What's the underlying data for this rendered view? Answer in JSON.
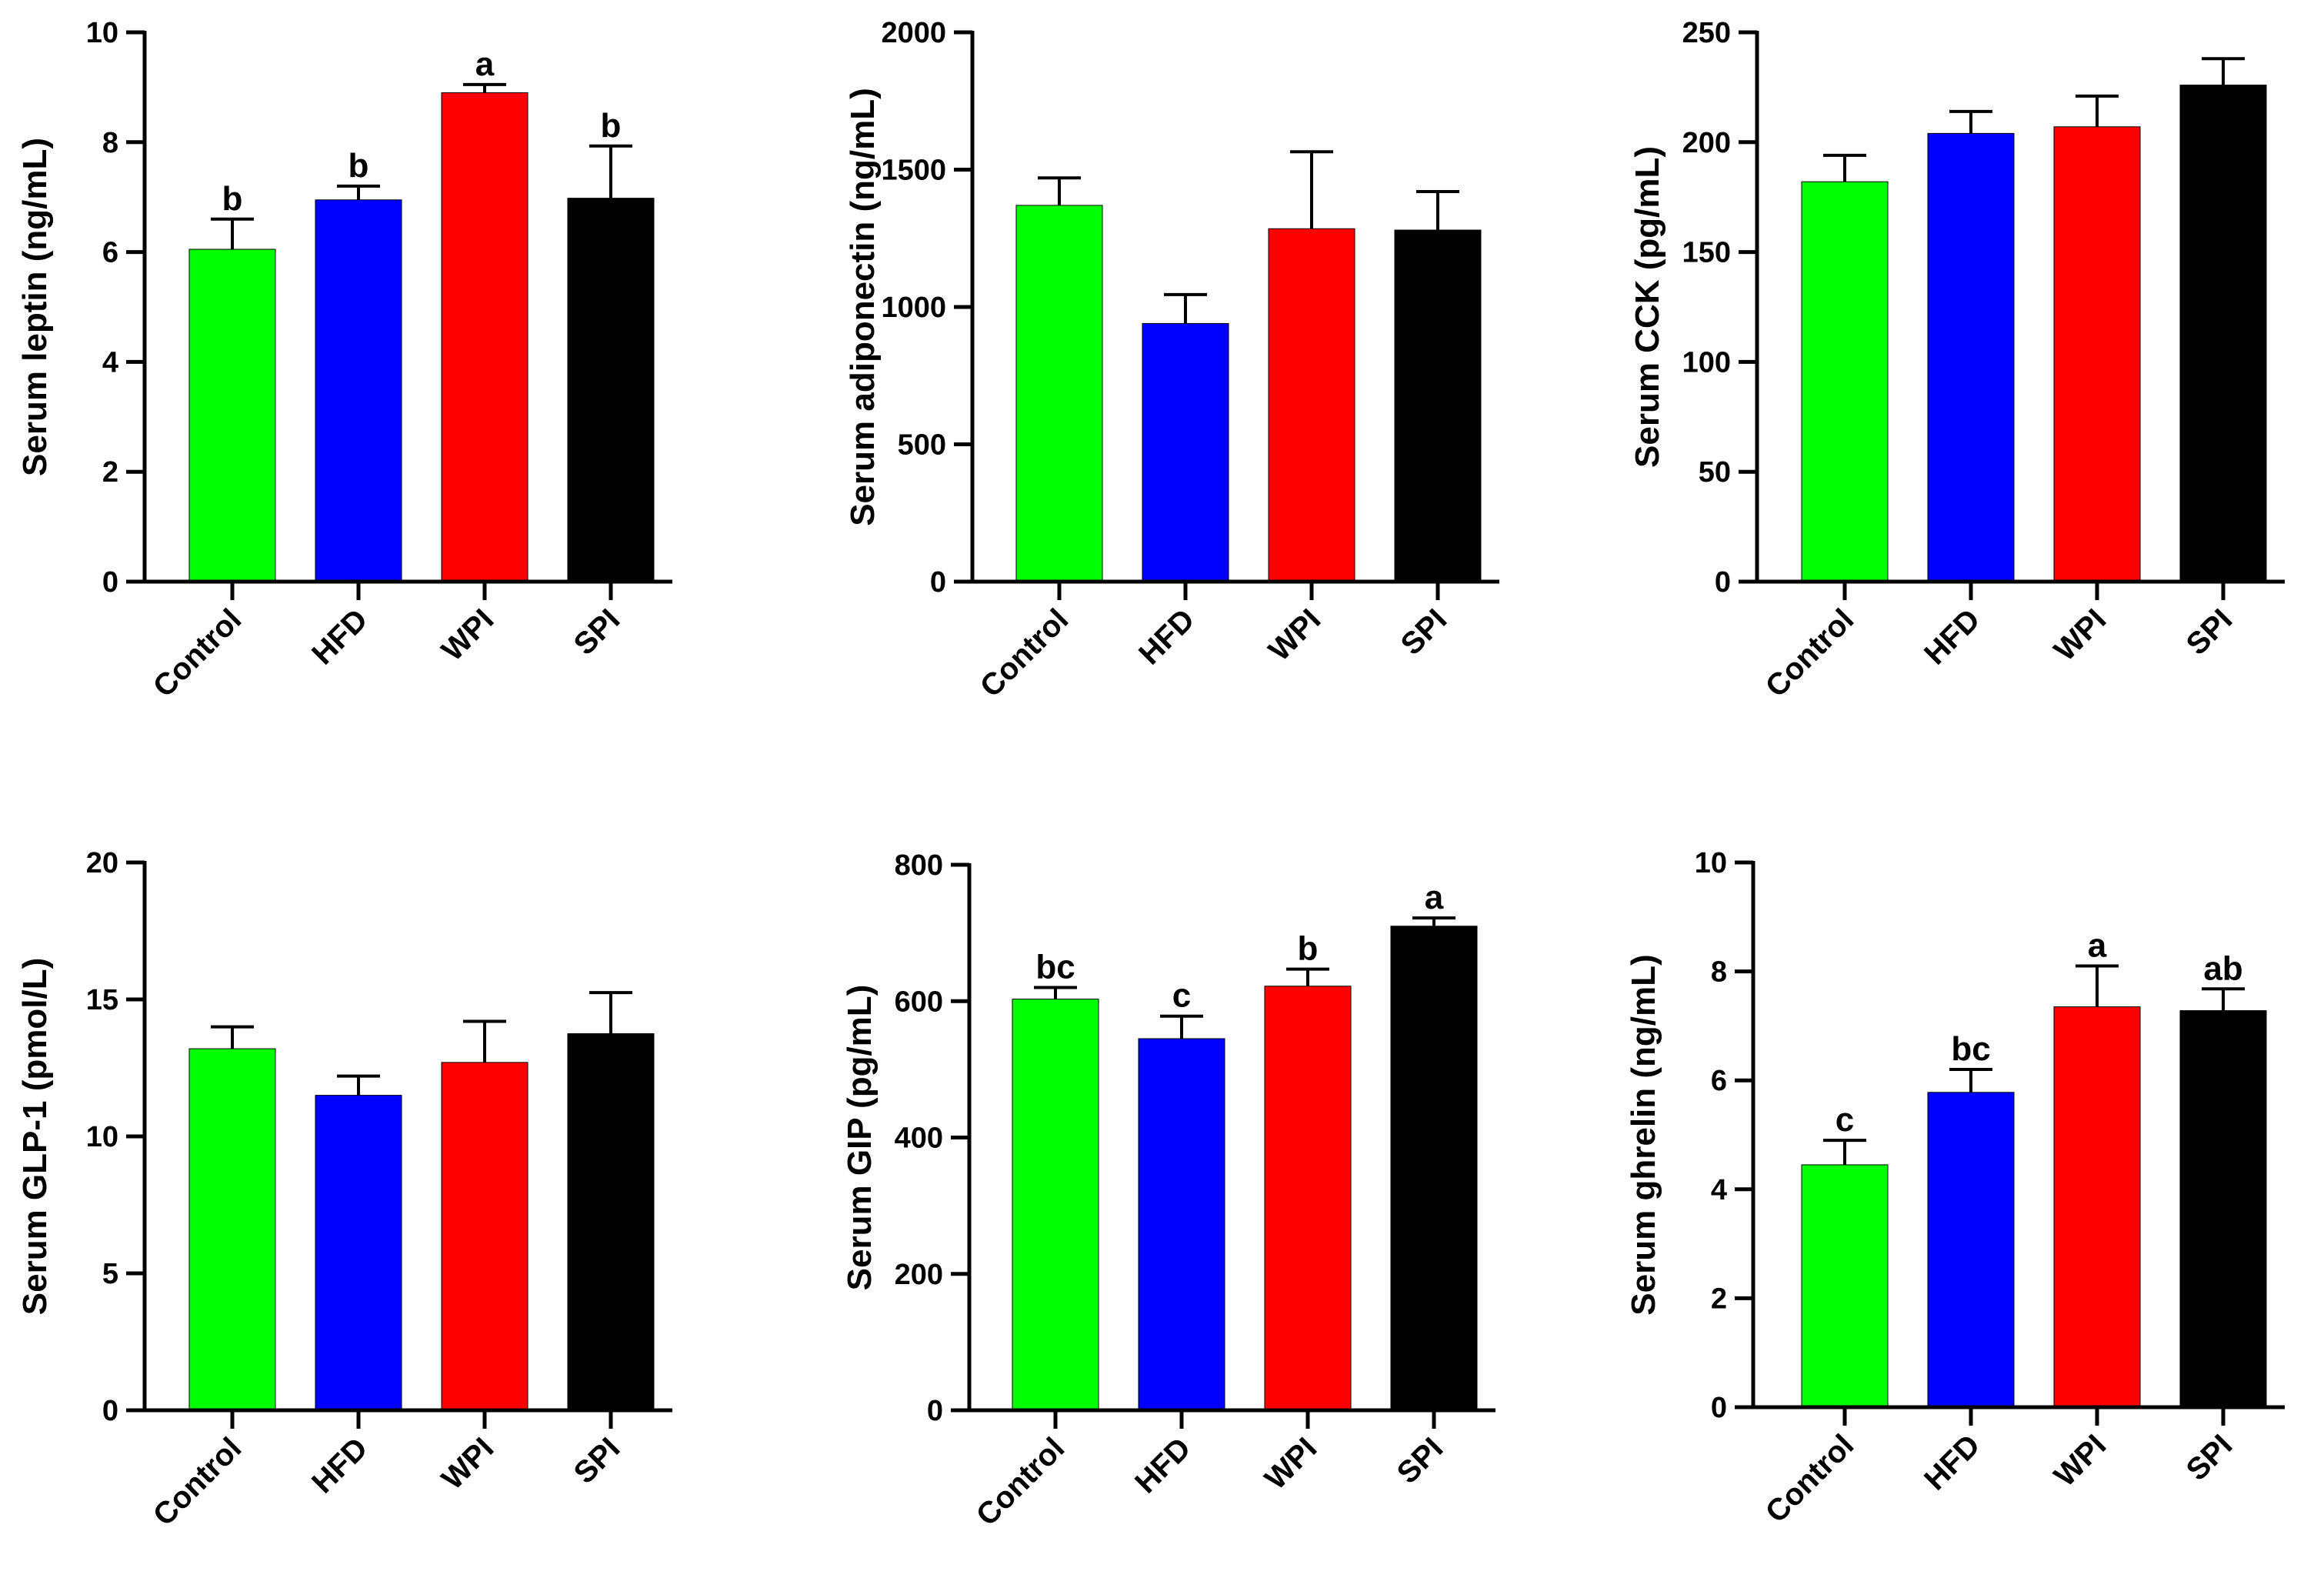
{
  "chart_data": [
    {
      "type": "bar",
      "ylabel": "Serum leptin (ng/mL)",
      "categories": [
        "Control",
        "HFD",
        "WPI",
        "SPI"
      ],
      "values": [
        6.05,
        6.95,
        8.9,
        6.98
      ],
      "errors": [
        0.55,
        0.25,
        0.15,
        0.95
      ],
      "letters": [
        "b",
        "b",
        "a",
        "b"
      ],
      "ylim": [
        0,
        10
      ],
      "ticks": [
        0,
        2,
        4,
        6,
        8,
        10
      ],
      "tick_labels": [
        "0",
        "2",
        "4",
        "6",
        "8",
        "10"
      ],
      "colors": [
        "#00ff00",
        "#0000ff",
        "#ff0000",
        "#000000"
      ]
    },
    {
      "type": "bar",
      "ylabel": "Serum adiponectin (ng/mL)",
      "categories": [
        "Control",
        "HFD",
        "WPI",
        "SPI"
      ],
      "values": [
        1370,
        940,
        1285,
        1280
      ],
      "errors": [
        100,
        105,
        280,
        140
      ],
      "letters": [
        "",
        "",
        "",
        ""
      ],
      "ylim": [
        0,
        2000
      ],
      "ticks": [
        0,
        500,
        1000,
        1500,
        2000
      ],
      "tick_labels": [
        "0",
        "500",
        "1000",
        "1500",
        "2000"
      ],
      "colors": [
        "#00ff00",
        "#0000ff",
        "#ff0000",
        "#000000"
      ]
    },
    {
      "type": "bar",
      "ylabel": "Serum CCK (pg/mL)",
      "categories": [
        "Control",
        "HFD",
        "WPI",
        "SPI"
      ],
      "values": [
        182,
        204,
        207,
        226
      ],
      "errors": [
        12,
        10,
        14,
        12
      ],
      "letters": [
        "",
        "",
        "",
        ""
      ],
      "ylim": [
        0,
        250
      ],
      "ticks": [
        0,
        50,
        100,
        150,
        200,
        250
      ],
      "tick_labels": [
        "0",
        "50",
        "100",
        "150",
        "200",
        "250"
      ],
      "colors": [
        "#00ff00",
        "#0000ff",
        "#ff0000",
        "#000000"
      ]
    },
    {
      "type": "bar",
      "ylabel": "Serum GLP-1 (pmol/L)",
      "categories": [
        "Control",
        "HFD",
        "WPI",
        "SPI"
      ],
      "values": [
        13.2,
        11.5,
        12.7,
        13.75
      ],
      "errors": [
        0.8,
        0.7,
        1.5,
        1.5
      ],
      "letters": [
        "",
        "",
        "",
        ""
      ],
      "ylim": [
        0,
        20
      ],
      "ticks": [
        0,
        5,
        10,
        15,
        20
      ],
      "tick_labels": [
        "0",
        "5",
        "10",
        "15",
        "20"
      ],
      "colors": [
        "#00ff00",
        "#0000ff",
        "#ff0000",
        "#000000"
      ]
    },
    {
      "type": "bar",
      "ylabel": "Serum GIP (pg/mL)",
      "categories": [
        "Control",
        "HFD",
        "WPI",
        "SPI"
      ],
      "values": [
        603,
        545,
        622,
        710
      ],
      "errors": [
        17,
        33,
        25,
        12
      ],
      "letters": [
        "bc",
        "c",
        "b",
        "a"
      ],
      "ylim": [
        0,
        800
      ],
      "ticks": [
        0,
        200,
        400,
        600,
        800
      ],
      "tick_labels": [
        "0",
        "200",
        "400",
        "600",
        "800"
      ],
      "colors": [
        "#00ff00",
        "#0000ff",
        "#ff0000",
        "#000000"
      ]
    },
    {
      "type": "bar",
      "ylabel": "Serum ghrelin (ng/mL)",
      "categories": [
        "Control",
        "HFD",
        "WPI",
        "SPI"
      ],
      "values": [
        4.45,
        5.78,
        7.35,
        7.28
      ],
      "errors": [
        0.45,
        0.42,
        0.75,
        0.4
      ],
      "letters": [
        "c",
        "bc",
        "a",
        "ab"
      ],
      "ylim": [
        0,
        10
      ],
      "ticks": [
        0,
        2,
        4,
        6,
        8,
        10
      ],
      "tick_labels": [
        "0",
        "2",
        "4",
        "6",
        "8",
        "10"
      ],
      "colors": [
        "#00ff00",
        "#0000ff",
        "#ff0000",
        "#000000"
      ]
    }
  ]
}
